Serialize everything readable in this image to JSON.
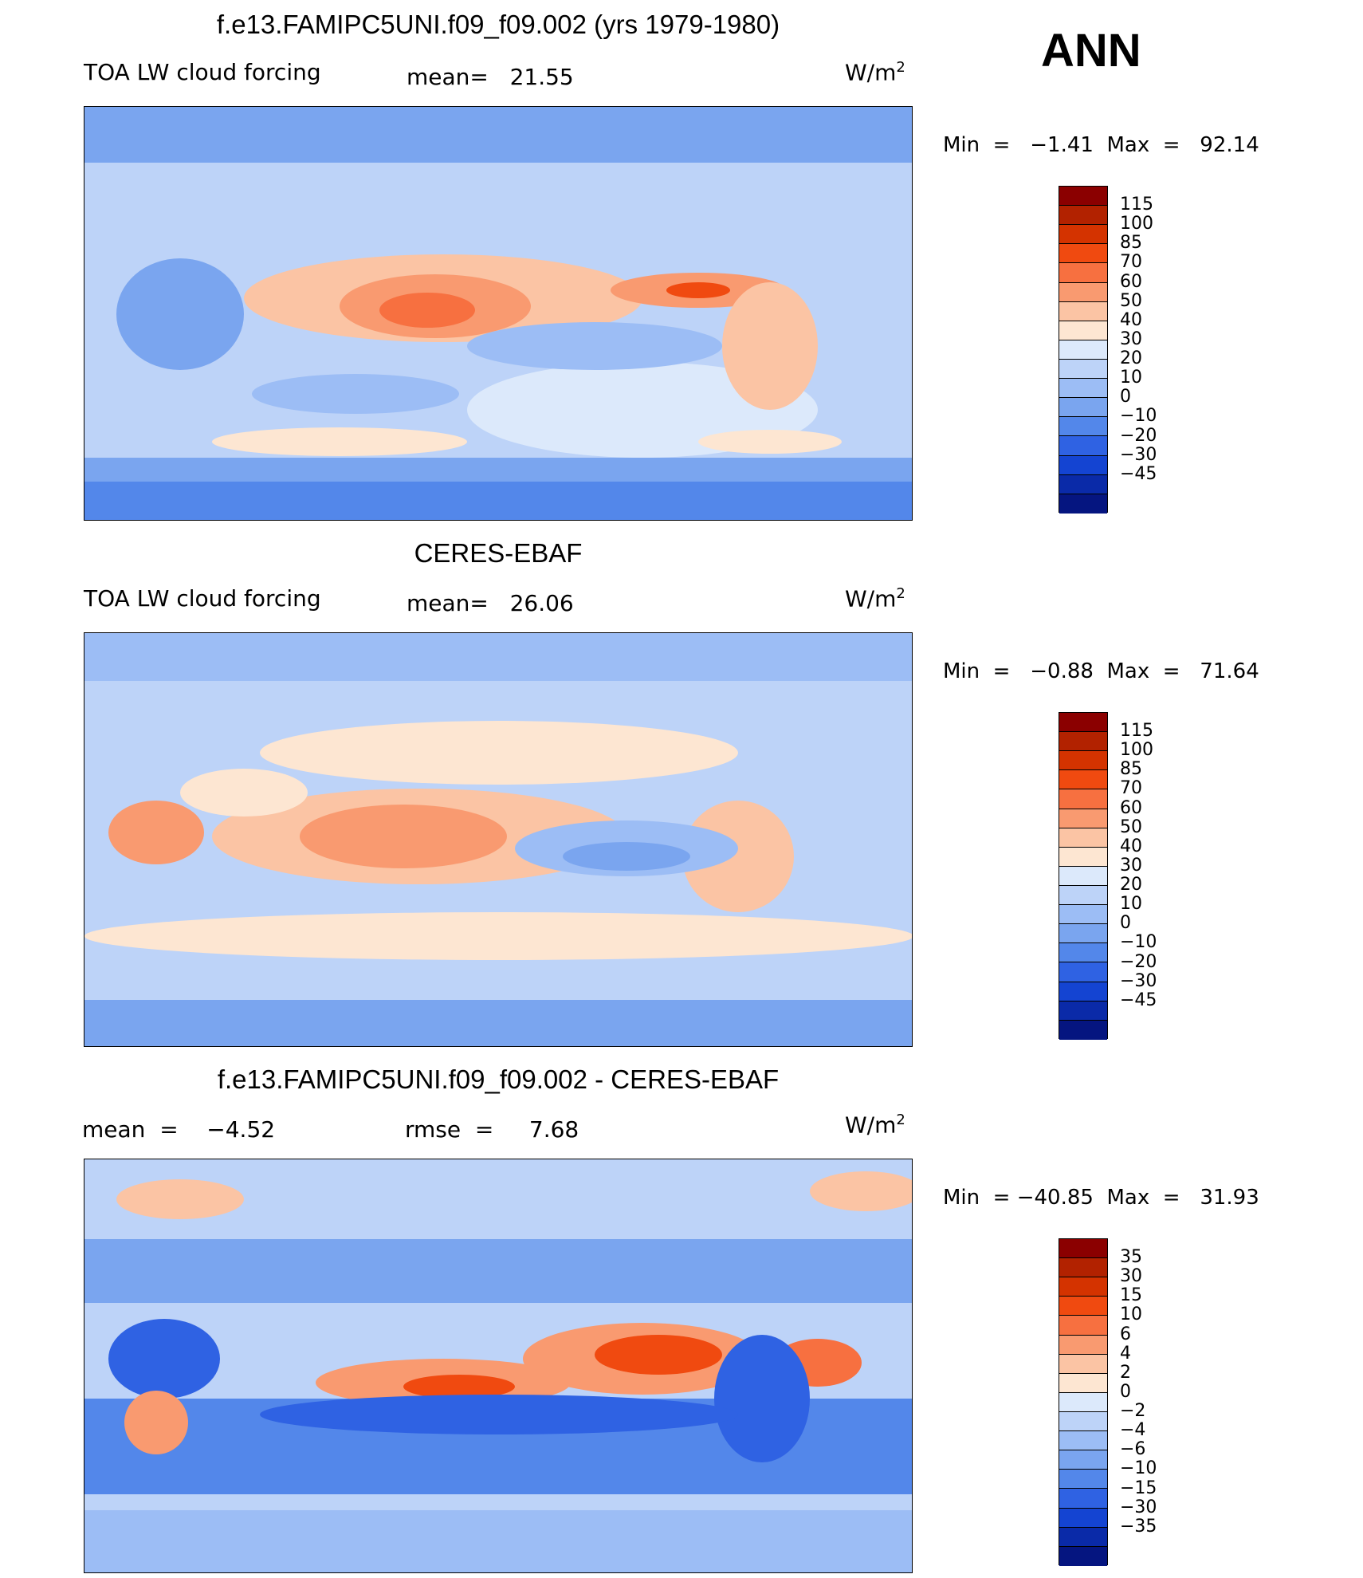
{
  "season": "ANN",
  "panels": [
    {
      "title": "f.e13.FAMIPC5UNI.f09_f09.002 (yrs 1979-1980)",
      "left_text": "TOA LW cloud forcing",
      "mid_text": "mean=   21.55",
      "units": "W/m",
      "units_sup": "2",
      "minmax": "Min  =   −1.41  Max  =   92.14",
      "levels": [
        "115",
        "100",
        "85",
        "70",
        "60",
        "50",
        "40",
        "30",
        "20",
        "10",
        "0",
        "−10",
        "−20",
        "−30",
        "−45"
      ],
      "colors": [
        "#8b0000",
        "#b22200",
        "#d43300",
        "#f04a10",
        "#f77040",
        "#f99a70",
        "#fbc4a4",
        "#fde6d2",
        "#dce9fb",
        "#bdd3f8",
        "#9cbdf5",
        "#7aa5ef",
        "#5387ea",
        "#2f62e3",
        "#1444d2",
        "#0a2aa8",
        "#051580"
      ]
    },
    {
      "title": "CERES-EBAF",
      "left_text": "TOA LW cloud forcing",
      "mid_text": "mean=   26.06",
      "units": "W/m",
      "units_sup": "2",
      "minmax": "Min  =   −0.88  Max  =   71.64",
      "levels": [
        "115",
        "100",
        "85",
        "70",
        "60",
        "50",
        "40",
        "30",
        "20",
        "10",
        "0",
        "−10",
        "−20",
        "−30",
        "−45"
      ],
      "colors": [
        "#8b0000",
        "#b22200",
        "#d43300",
        "#f04a10",
        "#f77040",
        "#f99a70",
        "#fbc4a4",
        "#fde6d2",
        "#dce9fb",
        "#bdd3f8",
        "#9cbdf5",
        "#7aa5ef",
        "#5387ea",
        "#2f62e3",
        "#1444d2",
        "#0a2aa8",
        "#051580"
      ]
    },
    {
      "title": "f.e13.FAMIPC5UNI.f09_f09.002 - CERES-EBAF",
      "left_text": "mean  =    −4.52",
      "mid_text": "rmse  =     7.68",
      "units": "W/m",
      "units_sup": "2",
      "minmax": "Min  = −40.85  Max  =   31.93",
      "levels": [
        "35",
        "30",
        "15",
        "10",
        "6",
        "4",
        "2",
        "0",
        "−2",
        "−4",
        "−6",
        "−10",
        "−15",
        "−30",
        "−35"
      ],
      "colors": [
        "#8b0000",
        "#b22200",
        "#d43300",
        "#f04a10",
        "#f77040",
        "#f99a70",
        "#fbc4a4",
        "#fde6d2",
        "#dce9fb",
        "#bdd3f8",
        "#9cbdf5",
        "#7aa5ef",
        "#5387ea",
        "#2f62e3",
        "#1444d2",
        "#0a2aa8",
        "#051580"
      ]
    }
  ]
}
